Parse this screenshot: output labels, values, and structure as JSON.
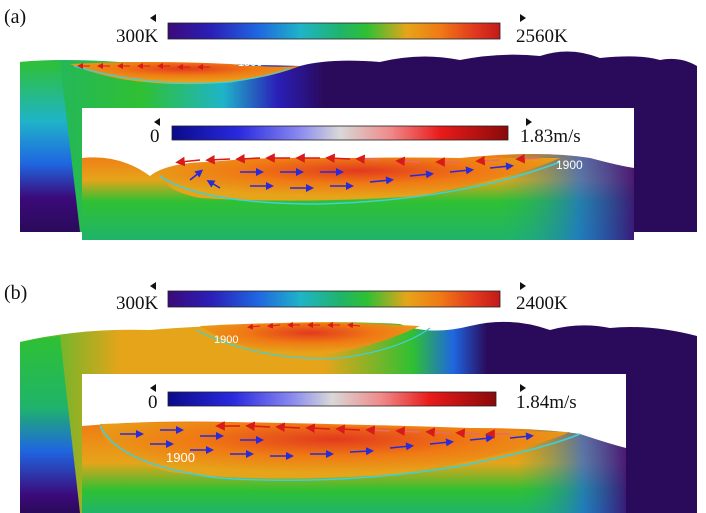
{
  "panels": [
    {
      "label": "(a)",
      "temp_scale": {
        "min_label": "300K",
        "max_label": "2560K"
      },
      "contour_label": "1900",
      "inset": {
        "velocity_scale": {
          "min_label": "0",
          "max_label": "1.83m/s"
        },
        "contour_label": "1900"
      }
    },
    {
      "label": "(b)",
      "temp_scale": {
        "min_label": "300K",
        "max_label": "2400K"
      },
      "contour_label": "1900",
      "inset": {
        "velocity_scale": {
          "min_label": "0",
          "max_label": "1.84m/s"
        },
        "contour_label": "1900"
      }
    }
  ],
  "colors": {
    "temp_colormap": [
      "#3b0a7a",
      "#2a1fb8",
      "#1f66e0",
      "#1fb4c8",
      "#1fb46a",
      "#2fc033",
      "#e6a41a",
      "#f07a14",
      "#e23a1e",
      "#c21a1a"
    ],
    "velocity_colormap": [
      "#0a0a8a",
      "#2a2ae0",
      "#8a8af0",
      "#d8d8d8",
      "#f08a8a",
      "#e81a1a",
      "#8a0a0a"
    ],
    "background_solid": "#2a0a5a",
    "contour": "#3fd0d8",
    "arrow_fast": "#d81a1a",
    "arrow_slow": "#2a2ad8"
  }
}
